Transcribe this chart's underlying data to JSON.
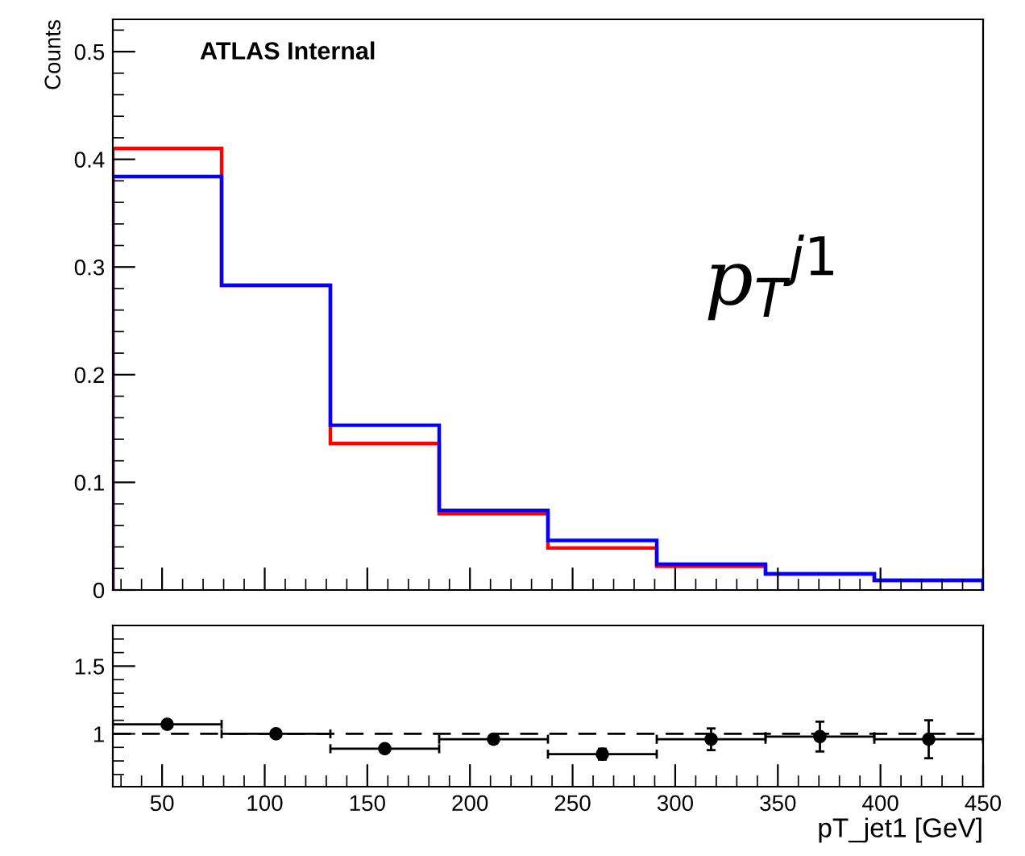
{
  "chart_data": [
    {
      "type": "histogram",
      "bins": [
        26,
        79,
        132,
        185,
        238,
        291,
        344,
        397,
        450
      ],
      "series": [
        {
          "color": "#ff0000",
          "values": [
            0.41,
            0.283,
            0.136,
            0.071,
            0.039,
            0.022,
            0.015,
            0.009
          ]
        },
        {
          "color": "#0000ff",
          "values": [
            0.384,
            0.283,
            0.153,
            0.074,
            0.046,
            0.024,
            0.015,
            0.009
          ]
        }
      ],
      "ylabel": "Counts",
      "xlim": [
        26,
        450
      ],
      "ylim": [
        0,
        0.53
      ],
      "yticks": [
        0,
        0.1,
        0.2,
        0.3,
        0.4,
        0.5
      ],
      "tick_labels": "y",
      "annotations": [
        "ATLAS Internal",
        "p$_{T}$$^{j1}$"
      ]
    },
    {
      "type": "scatter",
      "x": [
        52.5,
        105.5,
        158.5,
        211.5,
        264.5,
        317.5,
        370.5,
        423.5
      ],
      "values": [
        1.07,
        1.0,
        0.89,
        0.96,
        0.85,
        0.96,
        0.98,
        0.96
      ],
      "errors": [
        0.01,
        0.01,
        0.015,
        0.03,
        0.04,
        0.08,
        0.11,
        0.14
      ],
      "xerrors": [
        26.5,
        26.5,
        26.5,
        26.5,
        26.5,
        26.5,
        26.5,
        26.5
      ],
      "color": "#000000",
      "marker": "circle",
      "xlabel": "pT_jet1 [GeV]",
      "xlim": [
        26,
        450
      ],
      "xticks": [
        50,
        100,
        150,
        200,
        250,
        300,
        350,
        400,
        450
      ],
      "ylim": [
        0.61,
        1.8
      ],
      "yticks": [
        1,
        1.5
      ],
      "ref_lines": [
        {
          "axis": "y",
          "value": 1,
          "line_style": "dashed"
        }
      ]
    }
  ]
}
